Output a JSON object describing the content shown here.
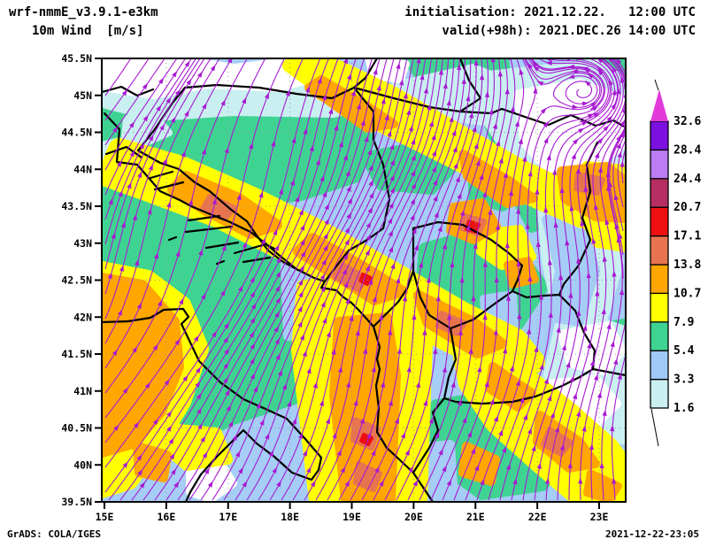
{
  "header": {
    "model": "wrf-nmmE_v3.9.1-e3km",
    "field": "10m Wind  [m/s]",
    "init": "initialisation: 2021.12.22.   12:00 UTC",
    "valid": "valid(+98h): 2021.DEC.26 14:00 UTC"
  },
  "footer": {
    "left": "GrADS: COLA/IGES",
    "right": "2021-12-22-23:05"
  },
  "axes": {
    "lat_labels": [
      "45.5N",
      "45N",
      "44.5N",
      "44N",
      "43.5N",
      "43N",
      "42.5N",
      "42N",
      "41.5N",
      "41N",
      "40.5N",
      "40N",
      "39.5N"
    ],
    "lon_labels": [
      "15E",
      "16E",
      "17E",
      "18E",
      "19E",
      "20E",
      "21E",
      "22E",
      "23E"
    ]
  },
  "colorbar": {
    "unit": "m/s",
    "labels_bottom_to_top": [
      "1.6",
      "3.3",
      "5.4",
      "7.9",
      "10.7",
      "13.8",
      "17.1",
      "20.7",
      "24.4",
      "28.4",
      "32.6"
    ],
    "colors_bottom_to_top": [
      "#c9eff1",
      "#a0c9f7",
      "#3fd392",
      "#ffff00",
      "#ffa600",
      "#e8744f",
      "#ee1010",
      "#b52f63",
      "#bc7df2",
      "#7b10e0"
    ],
    "tip_color": "#e23ad8"
  },
  "map_palette": {
    "base_blue": "#a5cdf5",
    "cyan": "#c9eff1",
    "white": "#ffffff",
    "green": "#3fd392",
    "yellow": "#ffff00",
    "orange": "#ffa600",
    "salmon": "#e8744f",
    "red": "#ee1010",
    "stream": "#a81ad2",
    "coast": "#000000",
    "grid": "#999999"
  },
  "chart_data": {
    "type": "heatmap",
    "title": "10m Wind  [m/s]",
    "model": "wrf-nmmE_v3.9.1-e3km",
    "init_time": "2021.12.22. 12:00 UTC",
    "valid_time": "2021.DEC.26 14:00 UTC (+98h)",
    "x_ticks": [
      "15E",
      "16E",
      "17E",
      "18E",
      "19E",
      "20E",
      "21E",
      "22E",
      "23E"
    ],
    "y_ticks": [
      "39.5N",
      "40N",
      "40.5N",
      "41N",
      "41.5N",
      "42N",
      "42.5N",
      "43N",
      "43.5N",
      "44N",
      "44.5N",
      "45N",
      "45.5N"
    ],
    "levels_ms": [
      1.6,
      3.3,
      5.4,
      7.9,
      10.7,
      13.8,
      17.1,
      20.7,
      24.4,
      28.4,
      32.6
    ],
    "legend_position": "right"
  }
}
